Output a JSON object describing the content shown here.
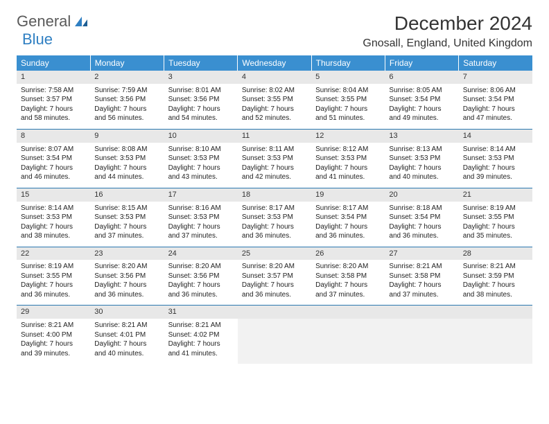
{
  "logo": {
    "word1": "General",
    "word2": "Blue"
  },
  "title": "December 2024",
  "location": "Gnosall, England, United Kingdom",
  "colors": {
    "header_bg": "#3a8fd0",
    "header_text": "#ffffff",
    "daynum_bg": "#e8e8e8",
    "row_divider": "#2a77b0",
    "empty_bg": "#f2f2f2",
    "logo_blue": "#2f7fc2",
    "text": "#222222"
  },
  "weekdays": [
    "Sunday",
    "Monday",
    "Tuesday",
    "Wednesday",
    "Thursday",
    "Friday",
    "Saturday"
  ],
  "days": [
    {
      "n": 1,
      "sr": "7:58 AM",
      "ss": "3:57 PM",
      "dl": "7 hours and 58 minutes."
    },
    {
      "n": 2,
      "sr": "7:59 AM",
      "ss": "3:56 PM",
      "dl": "7 hours and 56 minutes."
    },
    {
      "n": 3,
      "sr": "8:01 AM",
      "ss": "3:56 PM",
      "dl": "7 hours and 54 minutes."
    },
    {
      "n": 4,
      "sr": "8:02 AM",
      "ss": "3:55 PM",
      "dl": "7 hours and 52 minutes."
    },
    {
      "n": 5,
      "sr": "8:04 AM",
      "ss": "3:55 PM",
      "dl": "7 hours and 51 minutes."
    },
    {
      "n": 6,
      "sr": "8:05 AM",
      "ss": "3:54 PM",
      "dl": "7 hours and 49 minutes."
    },
    {
      "n": 7,
      "sr": "8:06 AM",
      "ss": "3:54 PM",
      "dl": "7 hours and 47 minutes."
    },
    {
      "n": 8,
      "sr": "8:07 AM",
      "ss": "3:54 PM",
      "dl": "7 hours and 46 minutes."
    },
    {
      "n": 9,
      "sr": "8:08 AM",
      "ss": "3:53 PM",
      "dl": "7 hours and 44 minutes."
    },
    {
      "n": 10,
      "sr": "8:10 AM",
      "ss": "3:53 PM",
      "dl": "7 hours and 43 minutes."
    },
    {
      "n": 11,
      "sr": "8:11 AM",
      "ss": "3:53 PM",
      "dl": "7 hours and 42 minutes."
    },
    {
      "n": 12,
      "sr": "8:12 AM",
      "ss": "3:53 PM",
      "dl": "7 hours and 41 minutes."
    },
    {
      "n": 13,
      "sr": "8:13 AM",
      "ss": "3:53 PM",
      "dl": "7 hours and 40 minutes."
    },
    {
      "n": 14,
      "sr": "8:14 AM",
      "ss": "3:53 PM",
      "dl": "7 hours and 39 minutes."
    },
    {
      "n": 15,
      "sr": "8:14 AM",
      "ss": "3:53 PM",
      "dl": "7 hours and 38 minutes."
    },
    {
      "n": 16,
      "sr": "8:15 AM",
      "ss": "3:53 PM",
      "dl": "7 hours and 37 minutes."
    },
    {
      "n": 17,
      "sr": "8:16 AM",
      "ss": "3:53 PM",
      "dl": "7 hours and 37 minutes."
    },
    {
      "n": 18,
      "sr": "8:17 AM",
      "ss": "3:53 PM",
      "dl": "7 hours and 36 minutes."
    },
    {
      "n": 19,
      "sr": "8:17 AM",
      "ss": "3:54 PM",
      "dl": "7 hours and 36 minutes."
    },
    {
      "n": 20,
      "sr": "8:18 AM",
      "ss": "3:54 PM",
      "dl": "7 hours and 36 minutes."
    },
    {
      "n": 21,
      "sr": "8:19 AM",
      "ss": "3:55 PM",
      "dl": "7 hours and 35 minutes."
    },
    {
      "n": 22,
      "sr": "8:19 AM",
      "ss": "3:55 PM",
      "dl": "7 hours and 36 minutes."
    },
    {
      "n": 23,
      "sr": "8:20 AM",
      "ss": "3:56 PM",
      "dl": "7 hours and 36 minutes."
    },
    {
      "n": 24,
      "sr": "8:20 AM",
      "ss": "3:56 PM",
      "dl": "7 hours and 36 minutes."
    },
    {
      "n": 25,
      "sr": "8:20 AM",
      "ss": "3:57 PM",
      "dl": "7 hours and 36 minutes."
    },
    {
      "n": 26,
      "sr": "8:20 AM",
      "ss": "3:58 PM",
      "dl": "7 hours and 37 minutes."
    },
    {
      "n": 27,
      "sr": "8:21 AM",
      "ss": "3:58 PM",
      "dl": "7 hours and 37 minutes."
    },
    {
      "n": 28,
      "sr": "8:21 AM",
      "ss": "3:59 PM",
      "dl": "7 hours and 38 minutes."
    },
    {
      "n": 29,
      "sr": "8:21 AM",
      "ss": "4:00 PM",
      "dl": "7 hours and 39 minutes."
    },
    {
      "n": 30,
      "sr": "8:21 AM",
      "ss": "4:01 PM",
      "dl": "7 hours and 40 minutes."
    },
    {
      "n": 31,
      "sr": "8:21 AM",
      "ss": "4:02 PM",
      "dl": "7 hours and 41 minutes."
    }
  ],
  "labels": {
    "sunrise": "Sunrise:",
    "sunset": "Sunset:",
    "daylight": "Daylight:"
  }
}
